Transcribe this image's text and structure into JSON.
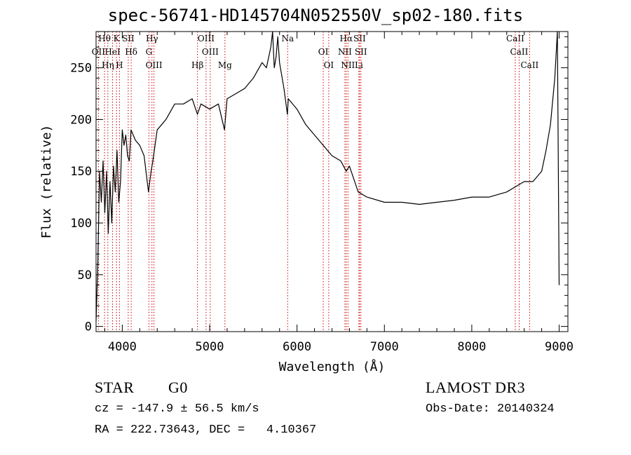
{
  "chart_data": {
    "type": "line",
    "title": "spec-56741-HD145704N052550V_sp02-180.fits",
    "xlabel": "Wavelength (Å)",
    "ylabel": "Flux (relative)",
    "xlim": [
      3700,
      9100
    ],
    "ylim": [
      -5,
      285
    ],
    "xticks": [
      4000,
      5000,
      6000,
      7000,
      8000,
      9000
    ],
    "yticks": [
      0,
      50,
      100,
      150,
      200,
      250
    ],
    "line_color": "#000000",
    "marker_color": "#cc0000",
    "series": [
      {
        "x": [
          3700,
          3720,
          3740,
          3760,
          3780,
          3800,
          3820,
          3840,
          3860,
          3880,
          3900,
          3920,
          3940,
          3960,
          3980,
          4000,
          4020,
          4040,
          4060,
          4080,
          4100,
          4150,
          4200,
          4250,
          4300,
          4330,
          4350,
          4400,
          4450,
          4500,
          4600,
          4700,
          4800,
          4860,
          4900,
          5000,
          5100,
          5170,
          5200,
          5300,
          5400,
          5500,
          5600,
          5650,
          5700,
          5720,
          5740,
          5760,
          5780,
          5800,
          5850,
          5890,
          5900,
          6000,
          6100,
          6200,
          6300,
          6400,
          6500,
          6563,
          6600,
          6700,
          6800,
          7000,
          7200,
          7400,
          7600,
          7800,
          8000,
          8200,
          8400,
          8500,
          8600,
          8700,
          8800,
          8850,
          8900,
          8950,
          8980,
          9000
        ],
        "y": [
          5,
          60,
          150,
          120,
          160,
          110,
          150,
          90,
          140,
          100,
          155,
          130,
          170,
          120,
          140,
          190,
          175,
          185,
          165,
          160,
          190,
          180,
          175,
          165,
          130,
          150,
          160,
          190,
          195,
          200,
          215,
          215,
          220,
          205,
          215,
          210,
          215,
          190,
          220,
          225,
          230,
          240,
          255,
          250,
          270,
          285,
          250,
          260,
          280,
          255,
          230,
          205,
          220,
          210,
          195,
          185,
          175,
          165,
          160,
          150,
          155,
          130,
          125,
          120,
          120,
          118,
          120,
          122,
          125,
          125,
          130,
          135,
          140,
          140,
          150,
          170,
          195,
          240,
          285,
          40
        ],
        "marker_style": "dotted"
      }
    ],
    "line_markers": [
      {
        "label": "Hθ",
        "x": 3797
      },
      {
        "label": "OII",
        "x": 3727
      },
      {
        "label": "Hη",
        "x": 3835
      },
      {
        "label": "K",
        "x": 3934
      },
      {
        "label": "HeI",
        "x": 3889
      },
      {
        "label": "H",
        "x": 3968
      },
      {
        "label": "SII",
        "x": 4068
      },
      {
        "label": "Hδ",
        "x": 4102
      },
      {
        "label": "OIII",
        "x": 4363
      },
      {
        "label": "Hγ",
        "x": 4340
      },
      {
        "label": "G",
        "x": 4305
      },
      {
        "label": "Hβ",
        "x": 4861
      },
      {
        "label": "OIII",
        "x": 4959
      },
      {
        "label": "OIII",
        "x": 5007
      },
      {
        "label": "Mg",
        "x": 5175
      },
      {
        "label": "Na",
        "x": 5893
      },
      {
        "label": "OI",
        "x": 6300
      },
      {
        "label": "OI",
        "x": 6363
      },
      {
        "label": "Hα",
        "x": 6563
      },
      {
        "label": "NII",
        "x": 6548
      },
      {
        "label": "NII",
        "x": 6583
      },
      {
        "label": "SII",
        "x": 6716
      },
      {
        "label": "SII",
        "x": 6731
      },
      {
        "label": "Li",
        "x": 6708
      },
      {
        "label": "CaII",
        "x": 8498
      },
      {
        "label": "CaII",
        "x": 8542
      },
      {
        "label": "CaII",
        "x": 8662
      }
    ]
  },
  "info": {
    "object_class": "STAR",
    "subclass": "G0",
    "survey": "LAMOST DR3",
    "redshift_text": "cz = -147.9 ± 56.5 km/s",
    "obs_date": "Obs-Date: 20140324",
    "coords": "RA = 222.73643, DEC =   4.10367"
  }
}
